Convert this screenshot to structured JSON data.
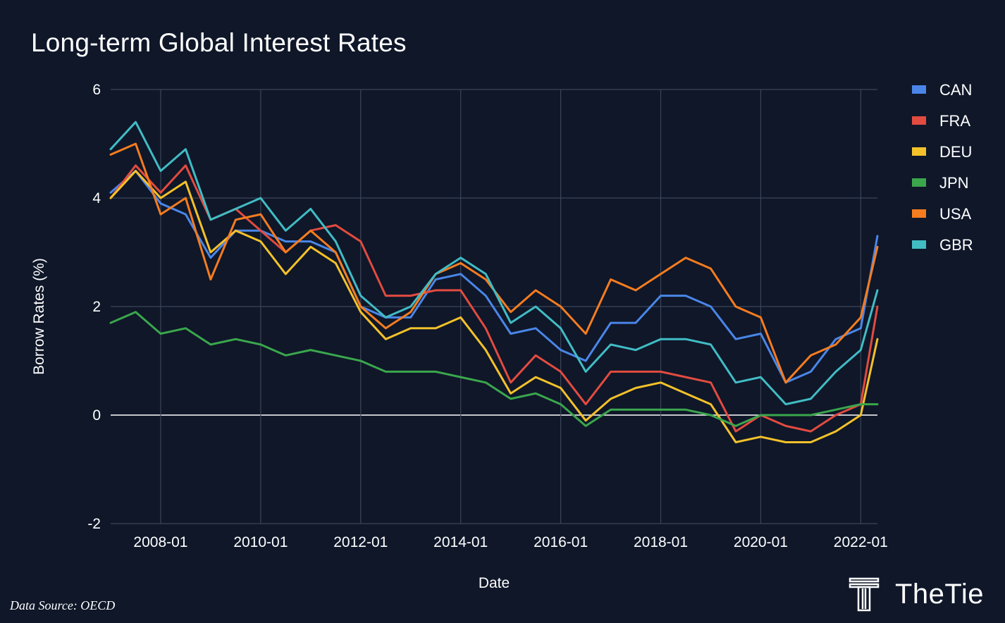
{
  "chart_data": {
    "type": "line",
    "title": "Long-term Global Interest Rates",
    "xlabel": "Date",
    "ylabel": "Borrow Rates (%)",
    "ylim": [
      -2,
      6
    ],
    "yticks": [
      "-2",
      "0",
      "2",
      "4",
      "6"
    ],
    "xticks": [
      "2008-01",
      "2010-01",
      "2012-01",
      "2014-01",
      "2016-01",
      "2018-01",
      "2020-01",
      "2022-01"
    ],
    "x_range": [
      "2007-01",
      "2022-05"
    ],
    "grid": true,
    "legend_position": "right",
    "series": [
      {
        "name": "CAN",
        "color": "#4a86e8",
        "points": [
          [
            "2007-01",
            4.1
          ],
          [
            "2007-07",
            4.5
          ],
          [
            "2008-01",
            3.9
          ],
          [
            "2008-07",
            3.7
          ],
          [
            "2009-01",
            2.9
          ],
          [
            "2009-07",
            3.4
          ],
          [
            "2010-01",
            3.4
          ],
          [
            "2010-07",
            3.2
          ],
          [
            "2011-01",
            3.2
          ],
          [
            "2011-07",
            3.0
          ],
          [
            "2012-01",
            2.0
          ],
          [
            "2012-07",
            1.8
          ],
          [
            "2013-01",
            1.8
          ],
          [
            "2013-07",
            2.5
          ],
          [
            "2014-01",
            2.6
          ],
          [
            "2014-07",
            2.2
          ],
          [
            "2015-01",
            1.5
          ],
          [
            "2015-07",
            1.6
          ],
          [
            "2016-01",
            1.2
          ],
          [
            "2016-07",
            1.0
          ],
          [
            "2017-01",
            1.7
          ],
          [
            "2017-07",
            1.7
          ],
          [
            "2018-01",
            2.2
          ],
          [
            "2018-07",
            2.2
          ],
          [
            "2019-01",
            2.0
          ],
          [
            "2019-07",
            1.4
          ],
          [
            "2020-01",
            1.5
          ],
          [
            "2020-07",
            0.6
          ],
          [
            "2021-01",
            0.8
          ],
          [
            "2021-07",
            1.4
          ],
          [
            "2022-01",
            1.6
          ],
          [
            "2022-05",
            3.3
          ]
        ]
      },
      {
        "name": "FRA",
        "color": "#e24b3f",
        "points": [
          [
            "2007-01",
            4.0
          ],
          [
            "2007-07",
            4.6
          ],
          [
            "2008-01",
            4.1
          ],
          [
            "2008-07",
            4.6
          ],
          [
            "2009-01",
            3.6
          ],
          [
            "2009-07",
            3.8
          ],
          [
            "2010-01",
            3.4
          ],
          [
            "2010-07",
            3.0
          ],
          [
            "2011-01",
            3.4
          ],
          [
            "2011-07",
            3.5
          ],
          [
            "2012-01",
            3.2
          ],
          [
            "2012-07",
            2.2
          ],
          [
            "2013-01",
            2.2
          ],
          [
            "2013-07",
            2.3
          ],
          [
            "2014-01",
            2.3
          ],
          [
            "2014-07",
            1.6
          ],
          [
            "2015-01",
            0.6
          ],
          [
            "2015-07",
            1.1
          ],
          [
            "2016-01",
            0.8
          ],
          [
            "2016-07",
            0.2
          ],
          [
            "2017-01",
            0.8
          ],
          [
            "2017-07",
            0.8
          ],
          [
            "2018-01",
            0.8
          ],
          [
            "2018-07",
            0.7
          ],
          [
            "2019-01",
            0.6
          ],
          [
            "2019-07",
            -0.3
          ],
          [
            "2020-01",
            0.0
          ],
          [
            "2020-07",
            -0.2
          ],
          [
            "2021-01",
            -0.3
          ],
          [
            "2021-07",
            0.0
          ],
          [
            "2022-01",
            0.2
          ],
          [
            "2022-05",
            2.0
          ]
        ]
      },
      {
        "name": "DEU",
        "color": "#f4c12a",
        "points": [
          [
            "2007-01",
            4.0
          ],
          [
            "2007-07",
            4.5
          ],
          [
            "2008-01",
            4.0
          ],
          [
            "2008-07",
            4.3
          ],
          [
            "2009-01",
            3.0
          ],
          [
            "2009-07",
            3.4
          ],
          [
            "2010-01",
            3.2
          ],
          [
            "2010-07",
            2.6
          ],
          [
            "2011-01",
            3.1
          ],
          [
            "2011-07",
            2.8
          ],
          [
            "2012-01",
            1.9
          ],
          [
            "2012-07",
            1.4
          ],
          [
            "2013-01",
            1.6
          ],
          [
            "2013-07",
            1.6
          ],
          [
            "2014-01",
            1.8
          ],
          [
            "2014-07",
            1.2
          ],
          [
            "2015-01",
            0.4
          ],
          [
            "2015-07",
            0.7
          ],
          [
            "2016-01",
            0.5
          ],
          [
            "2016-07",
            -0.1
          ],
          [
            "2017-01",
            0.3
          ],
          [
            "2017-07",
            0.5
          ],
          [
            "2018-01",
            0.6
          ],
          [
            "2018-07",
            0.4
          ],
          [
            "2019-01",
            0.2
          ],
          [
            "2019-07",
            -0.5
          ],
          [
            "2020-01",
            -0.4
          ],
          [
            "2020-07",
            -0.5
          ],
          [
            "2021-01",
            -0.5
          ],
          [
            "2021-07",
            -0.3
          ],
          [
            "2022-01",
            0.0
          ],
          [
            "2022-05",
            1.4
          ]
        ]
      },
      {
        "name": "JPN",
        "color": "#3ba64c",
        "points": [
          [
            "2007-01",
            1.7
          ],
          [
            "2007-07",
            1.9
          ],
          [
            "2008-01",
            1.5
          ],
          [
            "2008-07",
            1.6
          ],
          [
            "2009-01",
            1.3
          ],
          [
            "2009-07",
            1.4
          ],
          [
            "2010-01",
            1.3
          ],
          [
            "2010-07",
            1.1
          ],
          [
            "2011-01",
            1.2
          ],
          [
            "2011-07",
            1.1
          ],
          [
            "2012-01",
            1.0
          ],
          [
            "2012-07",
            0.8
          ],
          [
            "2013-01",
            0.8
          ],
          [
            "2013-07",
            0.8
          ],
          [
            "2014-01",
            0.7
          ],
          [
            "2014-07",
            0.6
          ],
          [
            "2015-01",
            0.3
          ],
          [
            "2015-07",
            0.4
          ],
          [
            "2016-01",
            0.2
          ],
          [
            "2016-07",
            -0.2
          ],
          [
            "2017-01",
            0.1
          ],
          [
            "2017-07",
            0.1
          ],
          [
            "2018-01",
            0.1
          ],
          [
            "2018-07",
            0.1
          ],
          [
            "2019-01",
            0.0
          ],
          [
            "2019-07",
            -0.2
          ],
          [
            "2020-01",
            0.0
          ],
          [
            "2020-07",
            0.0
          ],
          [
            "2021-01",
            0.0
          ],
          [
            "2021-07",
            0.1
          ],
          [
            "2022-01",
            0.2
          ],
          [
            "2022-05",
            0.2
          ]
        ]
      },
      {
        "name": "USA",
        "color": "#f57c1f",
        "points": [
          [
            "2007-01",
            4.8
          ],
          [
            "2007-07",
            5.0
          ],
          [
            "2008-01",
            3.7
          ],
          [
            "2008-07",
            4.0
          ],
          [
            "2009-01",
            2.5
          ],
          [
            "2009-07",
            3.6
          ],
          [
            "2010-01",
            3.7
          ],
          [
            "2010-07",
            3.0
          ],
          [
            "2011-01",
            3.4
          ],
          [
            "2011-07",
            3.0
          ],
          [
            "2012-01",
            2.0
          ],
          [
            "2012-07",
            1.6
          ],
          [
            "2013-01",
            1.9
          ],
          [
            "2013-07",
            2.6
          ],
          [
            "2014-01",
            2.8
          ],
          [
            "2014-07",
            2.5
          ],
          [
            "2015-01",
            1.9
          ],
          [
            "2015-07",
            2.3
          ],
          [
            "2016-01",
            2.0
          ],
          [
            "2016-07",
            1.5
          ],
          [
            "2017-01",
            2.5
          ],
          [
            "2017-07",
            2.3
          ],
          [
            "2018-01",
            2.6
          ],
          [
            "2018-07",
            2.9
          ],
          [
            "2019-01",
            2.7
          ],
          [
            "2019-07",
            2.0
          ],
          [
            "2020-01",
            1.8
          ],
          [
            "2020-07",
            0.6
          ],
          [
            "2021-01",
            1.1
          ],
          [
            "2021-07",
            1.3
          ],
          [
            "2022-01",
            1.8
          ],
          [
            "2022-05",
            3.1
          ]
        ]
      },
      {
        "name": "GBR",
        "color": "#41bcc4",
        "points": [
          [
            "2007-01",
            4.9
          ],
          [
            "2007-07",
            5.4
          ],
          [
            "2008-01",
            4.5
          ],
          [
            "2008-07",
            4.9
          ],
          [
            "2009-01",
            3.6
          ],
          [
            "2009-07",
            3.8
          ],
          [
            "2010-01",
            4.0
          ],
          [
            "2010-07",
            3.4
          ],
          [
            "2011-01",
            3.8
          ],
          [
            "2011-07",
            3.2
          ],
          [
            "2012-01",
            2.2
          ],
          [
            "2012-07",
            1.8
          ],
          [
            "2013-01",
            2.0
          ],
          [
            "2013-07",
            2.6
          ],
          [
            "2014-01",
            2.9
          ],
          [
            "2014-07",
            2.6
          ],
          [
            "2015-01",
            1.7
          ],
          [
            "2015-07",
            2.0
          ],
          [
            "2016-01",
            1.6
          ],
          [
            "2016-07",
            0.8
          ],
          [
            "2017-01",
            1.3
          ],
          [
            "2017-07",
            1.2
          ],
          [
            "2018-01",
            1.4
          ],
          [
            "2018-07",
            1.4
          ],
          [
            "2019-01",
            1.3
          ],
          [
            "2019-07",
            0.6
          ],
          [
            "2020-01",
            0.7
          ],
          [
            "2020-07",
            0.2
          ],
          [
            "2021-01",
            0.3
          ],
          [
            "2021-07",
            0.8
          ],
          [
            "2022-01",
            1.2
          ],
          [
            "2022-05",
            2.3
          ]
        ]
      }
    ]
  },
  "footer": {
    "source_note": "Data Source: OECD",
    "brand_name": "TheTie",
    "brand_icon": "thetie-logo-icon"
  }
}
